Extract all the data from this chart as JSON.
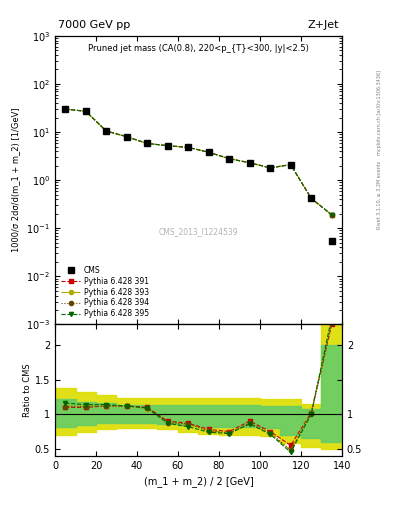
{
  "title_left": "7000 GeV pp",
  "title_right": "Z+Jet",
  "plot_title": "Pruned jet mass (CA(0.8), 220<p_{T}<300, |y|<2.5)",
  "ylabel_main": "1000/σ 2dσ/d(m_1 + m_2) [1/GeV]",
  "ylabel_ratio": "Ratio to CMS",
  "xlabel": "(m_1 + m_2) / 2 [GeV]",
  "watermark": "CMS_2013_I1224539",
  "rivet_label": "Rivet 3.1.10, ≥ 3.2M events",
  "right_label": "mcplots.cern.ch [arXiv:1306.3436]",
  "xlim": [
    0,
    140
  ],
  "ylim_main": [
    0.001,
    1000.0
  ],
  "ylim_ratio": [
    0.4,
    2.3
  ],
  "cms_x": [
    5,
    15,
    25,
    35,
    45,
    55,
    65,
    75,
    85,
    95,
    105,
    115,
    125,
    135
  ],
  "cms_y": [
    30.0,
    27.0,
    10.5,
    8.0,
    5.8,
    5.2,
    4.8,
    3.8,
    2.8,
    2.3,
    1.8,
    2.1,
    0.42,
    0.055
  ],
  "py391_y": [
    30.0,
    27.0,
    10.5,
    8.0,
    5.8,
    5.2,
    4.8,
    3.8,
    2.8,
    2.3,
    1.8,
    2.1,
    0.42,
    0.19
  ],
  "py393_y": [
    30.0,
    27.0,
    10.5,
    8.0,
    5.8,
    5.2,
    4.8,
    3.8,
    2.8,
    2.3,
    1.8,
    2.1,
    0.42,
    0.19
  ],
  "py394_y": [
    30.0,
    27.0,
    10.5,
    8.0,
    5.8,
    5.2,
    4.8,
    3.8,
    2.8,
    2.3,
    1.8,
    2.1,
    0.42,
    0.19
  ],
  "py395_y": [
    30.0,
    27.0,
    10.5,
    8.0,
    5.8,
    5.2,
    4.8,
    3.8,
    2.8,
    2.3,
    1.8,
    2.1,
    0.42,
    0.19
  ],
  "ratio_x": [
    5,
    15,
    25,
    35,
    45,
    55,
    65,
    75,
    85,
    95,
    105,
    115,
    125,
    135
  ],
  "ratio391_y": [
    1.1,
    1.1,
    1.12,
    1.12,
    1.1,
    0.9,
    0.87,
    0.78,
    0.75,
    0.9,
    0.75,
    0.55,
    1.02,
    2.3
  ],
  "ratio393_y": [
    1.12,
    1.12,
    1.12,
    1.12,
    1.08,
    0.88,
    0.85,
    0.76,
    0.73,
    0.87,
    0.72,
    0.48,
    1.02,
    2.35
  ],
  "ratio394_y": [
    1.11,
    1.11,
    1.12,
    1.12,
    1.09,
    0.88,
    0.86,
    0.76,
    0.73,
    0.87,
    0.73,
    0.48,
    1.0,
    2.32
  ],
  "ratio395_y": [
    1.16,
    1.14,
    1.14,
    1.12,
    1.09,
    0.87,
    0.82,
    0.74,
    0.72,
    0.86,
    0.71,
    0.45,
    1.0,
    2.4
  ],
  "band_x": [
    0,
    10,
    20,
    30,
    40,
    50,
    60,
    70,
    80,
    90,
    100,
    110,
    120,
    130,
    140
  ],
  "band_green_lo": [
    0.82,
    0.85,
    0.87,
    0.88,
    0.88,
    0.86,
    0.84,
    0.82,
    0.82,
    0.82,
    0.8,
    0.7,
    0.65,
    0.6,
    0.6
  ],
  "band_green_hi": [
    1.22,
    1.18,
    1.16,
    1.14,
    1.14,
    1.14,
    1.14,
    1.14,
    1.14,
    1.14,
    1.12,
    1.12,
    1.08,
    2.0,
    2.0
  ],
  "band_yellow_lo": [
    0.7,
    0.75,
    0.78,
    0.8,
    0.8,
    0.78,
    0.75,
    0.72,
    0.7,
    0.7,
    0.68,
    0.58,
    0.52,
    0.5,
    0.5
  ],
  "band_yellow_hi": [
    1.38,
    1.32,
    1.28,
    1.24,
    1.24,
    1.24,
    1.24,
    1.24,
    1.24,
    1.24,
    1.22,
    1.22,
    1.15,
    2.3,
    2.3
  ],
  "color_391": "#cc0000",
  "color_393": "#aaaa00",
  "color_394": "#664400",
  "color_395": "#006600",
  "color_green": "#66cc66",
  "color_yellow": "#dddd00",
  "legend_labels": [
    "CMS",
    "Pythia 6.428 391",
    "Pythia 6.428 393",
    "Pythia 6.428 394",
    "Pythia 6.428 395"
  ]
}
